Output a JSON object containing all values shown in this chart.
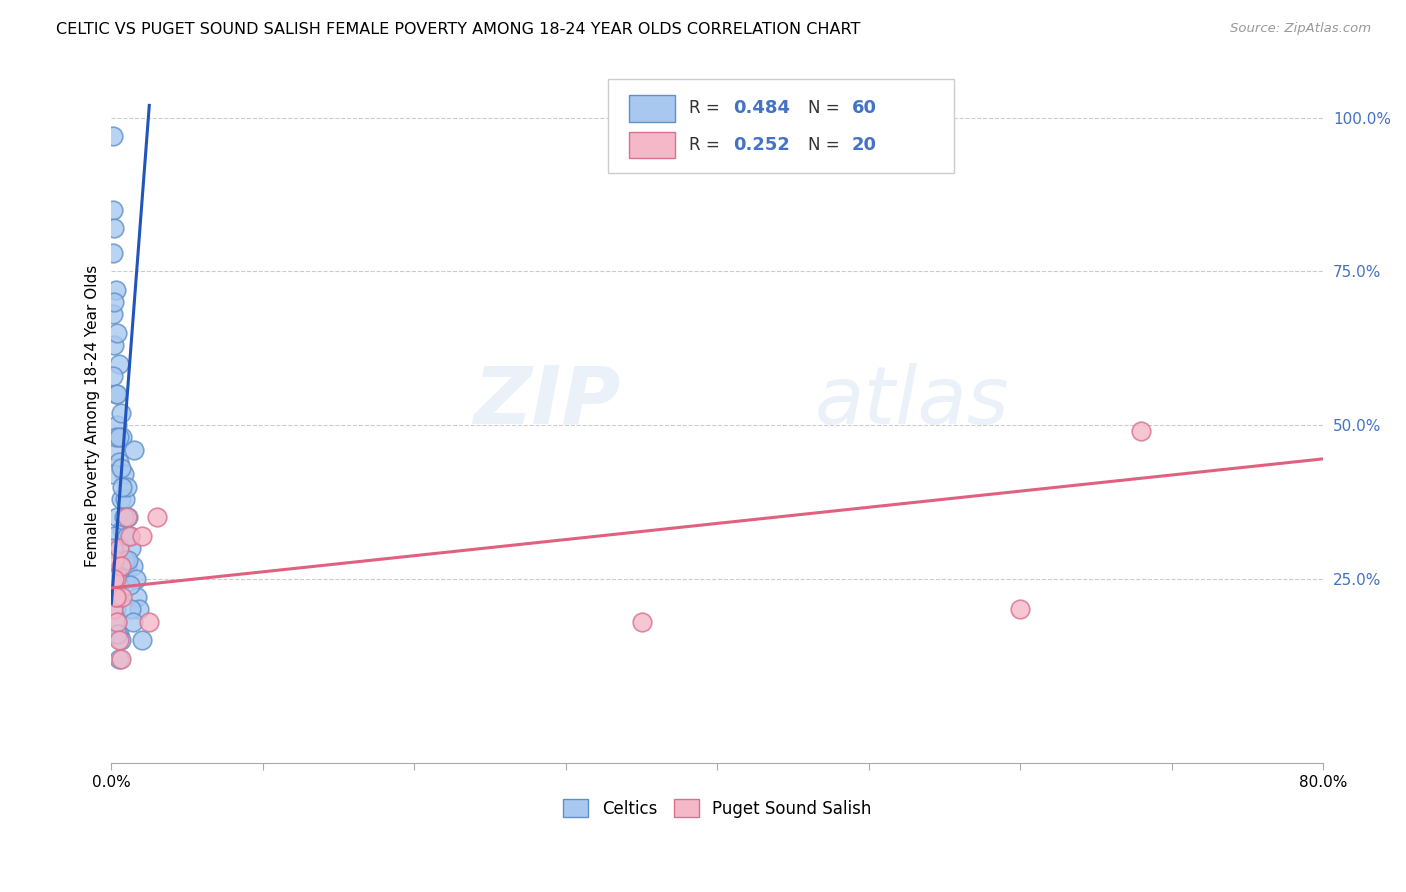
{
  "title": "CELTIC VS PUGET SOUND SALISH FEMALE POVERTY AMONG 18-24 YEAR OLDS CORRELATION CHART",
  "source": "Source: ZipAtlas.com",
  "ylabel": "Female Poverty Among 18-24 Year Olds",
  "xlim": [
    0.0,
    0.8
  ],
  "ylim": [
    -0.05,
    1.08
  ],
  "xtick_pos": [
    0.0,
    0.1,
    0.2,
    0.3,
    0.4,
    0.5,
    0.6,
    0.7,
    0.8
  ],
  "xtick_labels": [
    "0.0%",
    "",
    "",
    "",
    "",
    "",
    "",
    "",
    "80.0%"
  ],
  "ytick_positions": [
    0.0,
    0.25,
    0.5,
    0.75,
    1.0
  ],
  "ytick_labels": [
    "",
    "25.0%",
    "50.0%",
    "75.0%",
    "100.0%"
  ],
  "celtics_color": "#a8c8f0",
  "celtics_edge_color": "#6090c8",
  "puget_color": "#f4b8c8",
  "puget_edge_color": "#d87090",
  "blue_line_color": "#2255bb",
  "pink_line_color": "#e06080",
  "watermark_zip": "ZIP",
  "watermark_atlas": "atlas",
  "celtics_x": [
    0.001,
    0.001,
    0.001,
    0.002,
    0.002,
    0.002,
    0.003,
    0.003,
    0.004,
    0.004,
    0.004,
    0.005,
    0.005,
    0.005,
    0.006,
    0.006,
    0.007,
    0.007,
    0.008,
    0.008,
    0.009,
    0.009,
    0.01,
    0.01,
    0.011,
    0.012,
    0.013,
    0.014,
    0.015,
    0.016,
    0.017,
    0.018,
    0.02,
    0.001,
    0.001,
    0.001,
    0.001,
    0.002,
    0.002,
    0.003,
    0.003,
    0.004,
    0.004,
    0.005,
    0.005,
    0.006,
    0.006,
    0.007,
    0.008,
    0.009,
    0.01,
    0.011,
    0.012,
    0.013,
    0.014,
    0.001,
    0.002,
    0.003,
    0.004,
    0.005
  ],
  "celtics_y": [
    0.97,
    0.85,
    0.68,
    0.82,
    0.63,
    0.46,
    0.72,
    0.55,
    0.65,
    0.5,
    0.35,
    0.6,
    0.44,
    0.3,
    0.52,
    0.38,
    0.48,
    0.33,
    0.42,
    0.28,
    0.38,
    0.25,
    0.4,
    0.27,
    0.35,
    0.32,
    0.3,
    0.27,
    0.46,
    0.25,
    0.22,
    0.2,
    0.15,
    0.78,
    0.58,
    0.42,
    0.22,
    0.7,
    0.32,
    0.48,
    0.2,
    0.55,
    0.18,
    0.48,
    0.16,
    0.43,
    0.15,
    0.4,
    0.35,
    0.28,
    0.32,
    0.28,
    0.24,
    0.2,
    0.18,
    0.3,
    0.25,
    0.22,
    0.16,
    0.12
  ],
  "puget_x": [
    0.001,
    0.002,
    0.003,
    0.004,
    0.005,
    0.006,
    0.007,
    0.01,
    0.012,
    0.02,
    0.025,
    0.03,
    0.002,
    0.003,
    0.004,
    0.005,
    0.006,
    0.35,
    0.6,
    0.68
  ],
  "puget_y": [
    0.2,
    0.28,
    0.25,
    0.22,
    0.3,
    0.27,
    0.22,
    0.35,
    0.32,
    0.32,
    0.18,
    0.35,
    0.25,
    0.22,
    0.18,
    0.15,
    0.12,
    0.18,
    0.2,
    0.49
  ],
  "blue_line_x": [
    0.0,
    0.025
  ],
  "blue_line_y": [
    0.21,
    1.02
  ],
  "pink_line_x": [
    0.0,
    0.8
  ],
  "pink_line_y": [
    0.235,
    0.445
  ],
  "figsize": [
    14.06,
    8.92
  ],
  "dpi": 100
}
